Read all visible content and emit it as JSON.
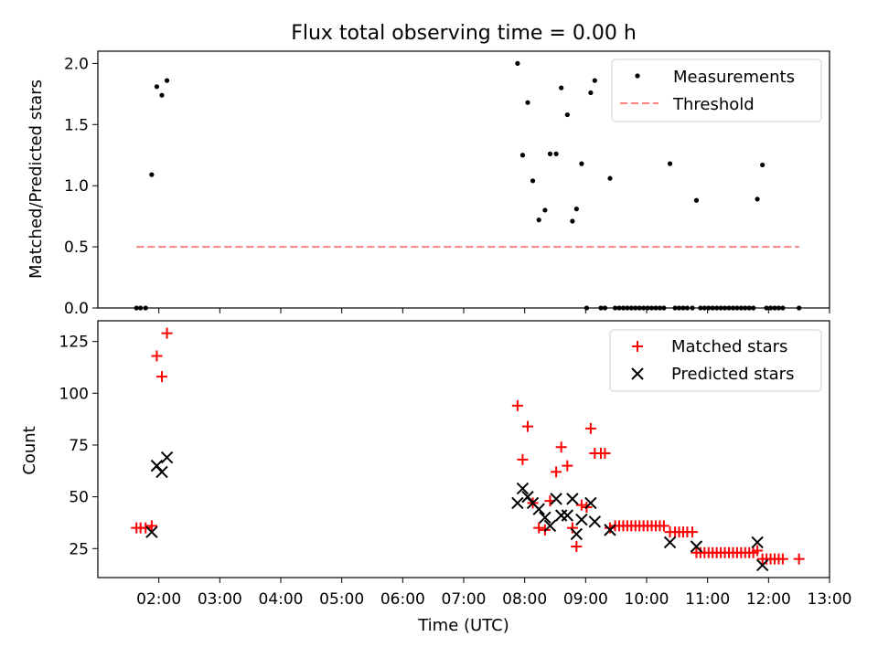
{
  "figure": {
    "title": "Flux total observing time = 0.00 h",
    "xlabel": "Time (UTC)"
  },
  "chart_data": [
    {
      "type": "scatter",
      "panel": "top",
      "ylabel": "Matched/Predicted stars",
      "ylim": [
        0,
        2.1
      ],
      "yticks": [
        0.0,
        0.5,
        1.0,
        1.5,
        2.0
      ],
      "ytick_labels": [
        "0.0",
        "0.5",
        "1.0",
        "1.5",
        "2.0"
      ],
      "xlim": [
        "01:00",
        "13:00"
      ],
      "legend": "top-right",
      "series": [
        {
          "name": "Measurements",
          "kind": "scatter",
          "color": "#000000",
          "points": [
            [
              "01:38",
              0
            ],
            [
              "01:42",
              0
            ],
            [
              "01:47",
              0
            ],
            [
              "01:53",
              1.09
            ],
            [
              "01:58",
              1.81
            ],
            [
              "02:03",
              1.74
            ],
            [
              "02:08",
              1.86
            ],
            [
              "07:53",
              2.0
            ],
            [
              "07:58",
              1.25
            ],
            [
              "08:03",
              1.68
            ],
            [
              "08:08",
              1.04
            ],
            [
              "08:14",
              0.72
            ],
            [
              "08:20",
              0.8
            ],
            [
              "08:25",
              1.26
            ],
            [
              "08:31",
              1.26
            ],
            [
              "08:36",
              1.8
            ],
            [
              "08:42",
              1.58
            ],
            [
              "08:47",
              0.71
            ],
            [
              "08:51",
              0.81
            ],
            [
              "08:56",
              1.18
            ],
            [
              "09:01",
              0
            ],
            [
              "09:05",
              1.76
            ],
            [
              "09:09",
              1.86
            ],
            [
              "09:15",
              0
            ],
            [
              "09:19",
              0
            ],
            [
              "09:24",
              1.06
            ],
            [
              "09:29",
              0
            ],
            [
              "09:33",
              0
            ],
            [
              "09:37",
              0
            ],
            [
              "09:41",
              0
            ],
            [
              "09:45",
              0
            ],
            [
              "09:49",
              0
            ],
            [
              "09:53",
              0
            ],
            [
              "09:57",
              0
            ],
            [
              "10:01",
              0
            ],
            [
              "10:05",
              0
            ],
            [
              "10:09",
              0
            ],
            [
              "10:13",
              0
            ],
            [
              "10:17",
              0
            ],
            [
              "10:23",
              1.18
            ],
            [
              "10:28",
              0
            ],
            [
              "10:32",
              0
            ],
            [
              "10:36",
              0
            ],
            [
              "10:40",
              0
            ],
            [
              "10:45",
              0
            ],
            [
              "10:49",
              0.88
            ],
            [
              "10:53",
              0
            ],
            [
              "10:57",
              0
            ],
            [
              "11:01",
              0
            ],
            [
              "11:05",
              0
            ],
            [
              "11:09",
              0
            ],
            [
              "11:13",
              0
            ],
            [
              "11:17",
              0
            ],
            [
              "11:21",
              0
            ],
            [
              "11:25",
              0
            ],
            [
              "11:29",
              0
            ],
            [
              "11:33",
              0
            ],
            [
              "11:37",
              0
            ],
            [
              "11:41",
              0
            ],
            [
              "11:45",
              0
            ],
            [
              "11:49",
              0.89
            ],
            [
              "11:54",
              1.17
            ],
            [
              "11:58",
              0
            ],
            [
              "12:02",
              0
            ],
            [
              "12:06",
              0
            ],
            [
              "12:10",
              0
            ],
            [
              "12:14",
              0
            ],
            [
              "12:30",
              0
            ]
          ]
        },
        {
          "name": "Threshold",
          "kind": "line",
          "style": "dashed",
          "color": "#ff7f7f",
          "points": [
            [
              "01:38",
              0.5
            ],
            [
              "12:30",
              0.5
            ]
          ]
        }
      ]
    },
    {
      "type": "scatter",
      "panel": "bottom",
      "ylabel": "Count",
      "ylim": [
        11,
        135
      ],
      "yticks": [
        25,
        50,
        75,
        100,
        125
      ],
      "ytick_labels": [
        "25",
        "50",
        "75",
        "100",
        "125"
      ],
      "xlim": [
        "01:00",
        "13:00"
      ],
      "xtick_labels": [
        "02:00",
        "03:00",
        "04:00",
        "05:00",
        "06:00",
        "07:00",
        "08:00",
        "09:00",
        "10:00",
        "11:00",
        "12:00",
        "13:00"
      ],
      "legend": "top-right",
      "series": [
        {
          "name": "Matched stars",
          "marker": "plus",
          "color": "#ff0000",
          "points": [
            [
              "01:38",
              35
            ],
            [
              "01:42",
              35
            ],
            [
              "01:47",
              35
            ],
            [
              "01:53",
              36
            ],
            [
              "01:58",
              118
            ],
            [
              "02:03",
              108
            ],
            [
              "02:08",
              129
            ],
            [
              "07:53",
              94
            ],
            [
              "07:58",
              68
            ],
            [
              "08:03",
              84
            ],
            [
              "08:08",
              47
            ],
            [
              "08:14",
              35
            ],
            [
              "08:20",
              34
            ],
            [
              "08:25",
              48
            ],
            [
              "08:31",
              62
            ],
            [
              "08:36",
              74
            ],
            [
              "08:42",
              65
            ],
            [
              "08:47",
              35
            ],
            [
              "08:51",
              26
            ],
            [
              "08:56",
              46
            ],
            [
              "09:01",
              45
            ],
            [
              "09:05",
              83
            ],
            [
              "09:09",
              71
            ],
            [
              "09:15",
              71
            ],
            [
              "09:19",
              71
            ],
            [
              "09:24",
              35
            ],
            [
              "09:29",
              36
            ],
            [
              "09:33",
              36
            ],
            [
              "09:37",
              36
            ],
            [
              "09:41",
              36
            ],
            [
              "09:45",
              36
            ],
            [
              "09:49",
              36
            ],
            [
              "09:53",
              36
            ],
            [
              "09:57",
              36
            ],
            [
              "10:01",
              36
            ],
            [
              "10:05",
              36
            ],
            [
              "10:09",
              36
            ],
            [
              "10:13",
              36
            ],
            [
              "10:17",
              36
            ],
            [
              "10:23",
              33
            ],
            [
              "10:28",
              33
            ],
            [
              "10:32",
              33
            ],
            [
              "10:36",
              33
            ],
            [
              "10:40",
              33
            ],
            [
              "10:45",
              33
            ],
            [
              "10:49",
              23
            ],
            [
              "10:53",
              23
            ],
            [
              "10:57",
              23
            ],
            [
              "11:01",
              23
            ],
            [
              "11:05",
              23
            ],
            [
              "11:09",
              23
            ],
            [
              "11:13",
              23
            ],
            [
              "11:17",
              23
            ],
            [
              "11:21",
              23
            ],
            [
              "11:25",
              23
            ],
            [
              "11:29",
              23
            ],
            [
              "11:33",
              23
            ],
            [
              "11:37",
              23
            ],
            [
              "11:41",
              23
            ],
            [
              "11:45",
              23
            ],
            [
              "11:49",
              24
            ],
            [
              "11:54",
              20
            ],
            [
              "11:58",
              20
            ],
            [
              "12:02",
              20
            ],
            [
              "12:06",
              20
            ],
            [
              "12:10",
              20
            ],
            [
              "12:14",
              20
            ],
            [
              "12:30",
              20
            ]
          ]
        },
        {
          "name": "Predicted stars",
          "marker": "x",
          "color": "#000000",
          "points": [
            [
              "01:53",
              33
            ],
            [
              "01:58",
              65
            ],
            [
              "02:03",
              62
            ],
            [
              "02:08",
              69
            ],
            [
              "07:53",
              47
            ],
            [
              "07:58",
              54
            ],
            [
              "08:03",
              50
            ],
            [
              "08:08",
              47
            ],
            [
              "08:14",
              44
            ],
            [
              "08:20",
              40
            ],
            [
              "08:25",
              36
            ],
            [
              "08:31",
              49
            ],
            [
              "08:36",
              41
            ],
            [
              "08:42",
              41
            ],
            [
              "08:47",
              49
            ],
            [
              "08:51",
              32
            ],
            [
              "08:56",
              39
            ],
            [
              "09:05",
              47
            ],
            [
              "09:09",
              38
            ],
            [
              "09:24",
              34
            ],
            [
              "10:23",
              28
            ],
            [
              "10:49",
              26
            ],
            [
              "11:49",
              28
            ],
            [
              "11:54",
              17
            ]
          ]
        }
      ]
    }
  ]
}
